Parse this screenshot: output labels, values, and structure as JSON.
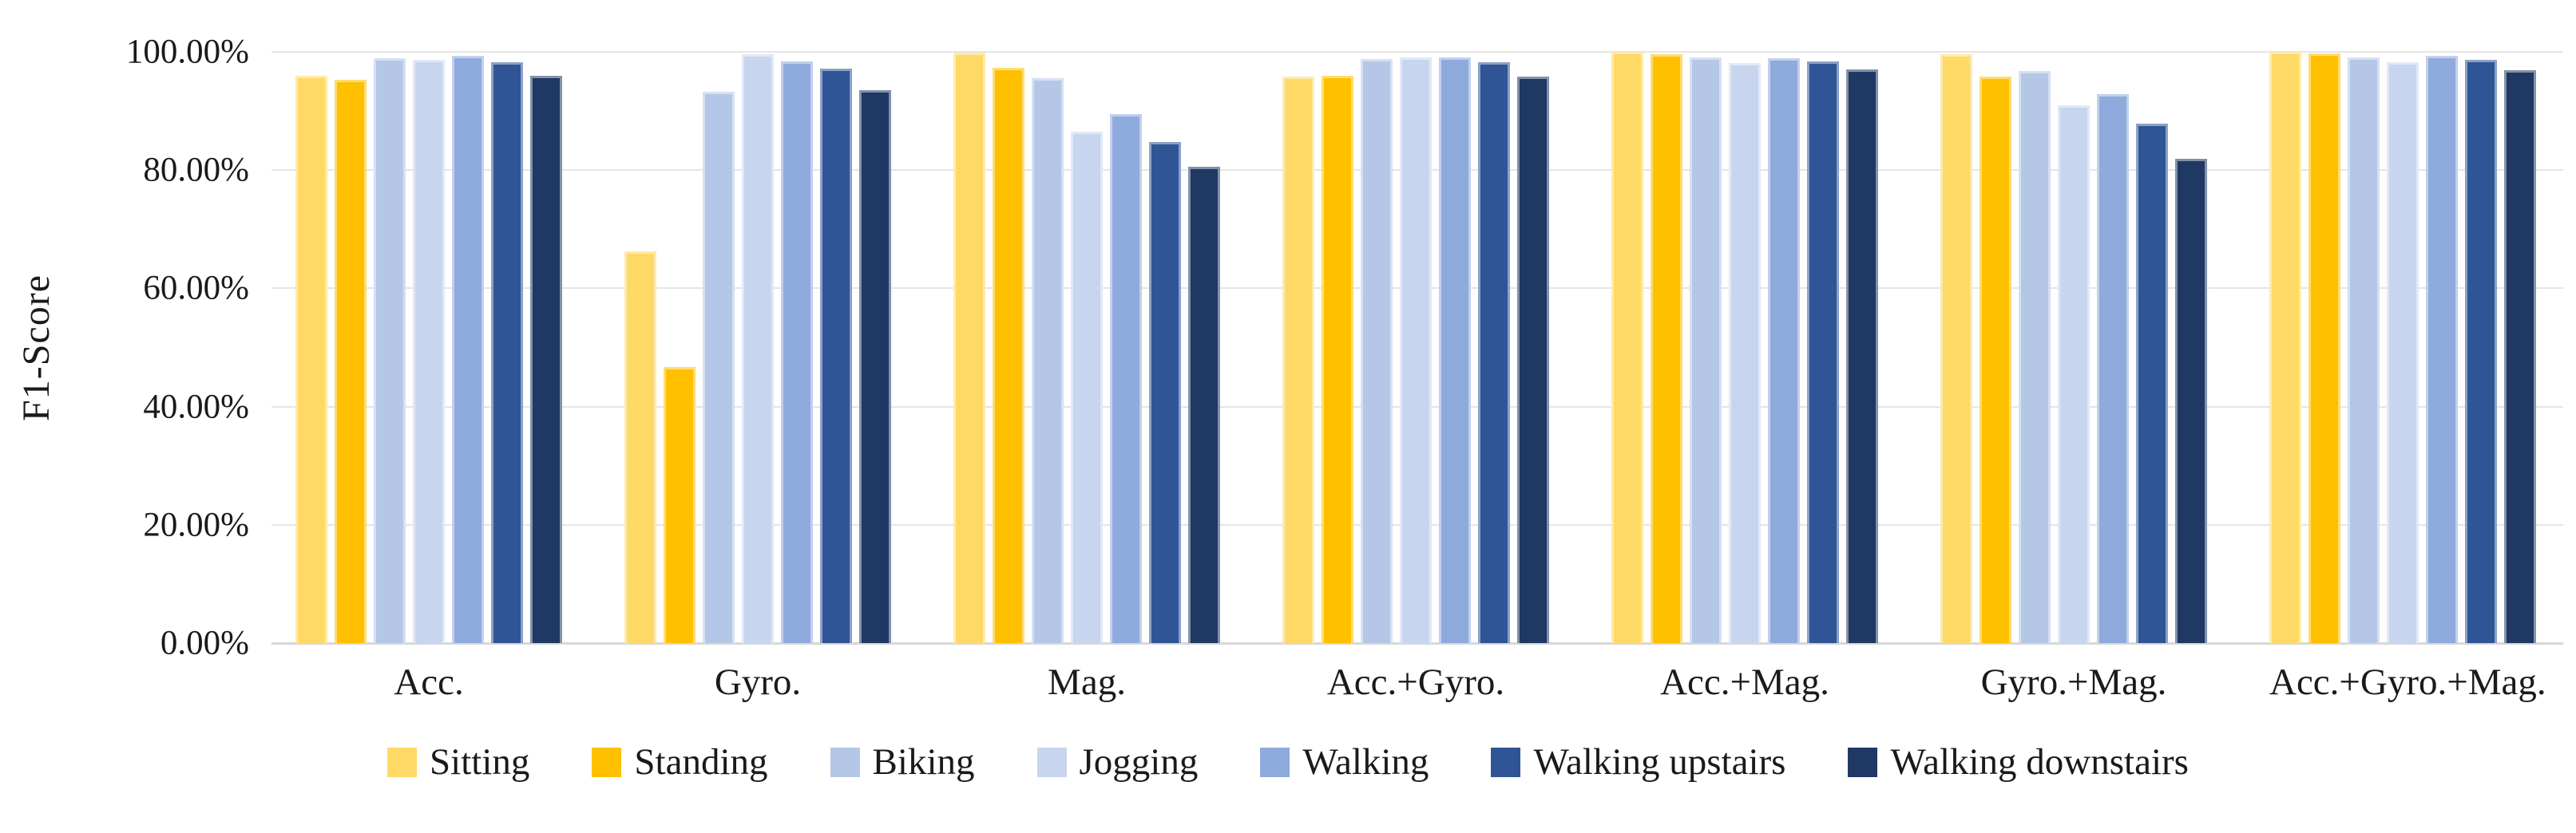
{
  "chart_data": {
    "type": "bar",
    "title": "",
    "xlabel": "",
    "ylabel": "F1-Score",
    "ylim": [
      0,
      100
    ],
    "yticks": [
      {
        "value": 0,
        "label": "0.00%"
      },
      {
        "value": 20,
        "label": "20.00%"
      },
      {
        "value": 40,
        "label": "40.00%"
      },
      {
        "value": 60,
        "label": "60.00%"
      },
      {
        "value": 80,
        "label": "80.00%"
      },
      {
        "value": 100,
        "label": "100.00%"
      }
    ],
    "grid": "horizontal",
    "legend_position": "bottom",
    "background_color": "#FFFFFF",
    "gridline_color": "#E5E5E5",
    "axisline_color": "#D8D8D8",
    "categories": [
      "Acc.",
      "Gyro.",
      "Mag.",
      "Acc.+Gyro.",
      "Acc.+Mag.",
      "Gyro.+Mag.",
      "Acc.+Gyro.+Mag."
    ],
    "series": [
      {
        "name": "Sitting",
        "color": "#FFD966",
        "values": [
          95.9,
          66.3,
          99.8,
          95.8,
          100.0,
          99.6,
          100.0
        ]
      },
      {
        "name": "Standing",
        "color": "#FFC000",
        "values": [
          95.3,
          46.7,
          97.3,
          95.9,
          99.6,
          95.8,
          99.7
        ]
      },
      {
        "name": "Biking",
        "color": "#B4C7E7",
        "values": [
          98.9,
          93.3,
          95.6,
          98.8,
          99.0,
          96.7,
          99.0
        ]
      },
      {
        "name": "Jogging",
        "color": "#C8D5EE",
        "values": [
          98.7,
          99.6,
          86.5,
          99.0,
          98.1,
          90.9,
          98.2
        ]
      },
      {
        "name": "Walking",
        "color": "#8FAADC",
        "values": [
          99.3,
          98.4,
          89.5,
          99.1,
          98.9,
          92.8,
          99.3
        ]
      },
      {
        "name": "Walking upstairs",
        "color": "#2F5597",
        "values": [
          98.3,
          97.2,
          84.8,
          98.2,
          98.4,
          87.9,
          98.6
        ]
      },
      {
        "name": "Walking downstairs",
        "color": "#1F3864",
        "values": [
          96.0,
          93.5,
          80.6,
          95.8,
          97.0,
          81.9,
          96.9
        ]
      }
    ]
  }
}
